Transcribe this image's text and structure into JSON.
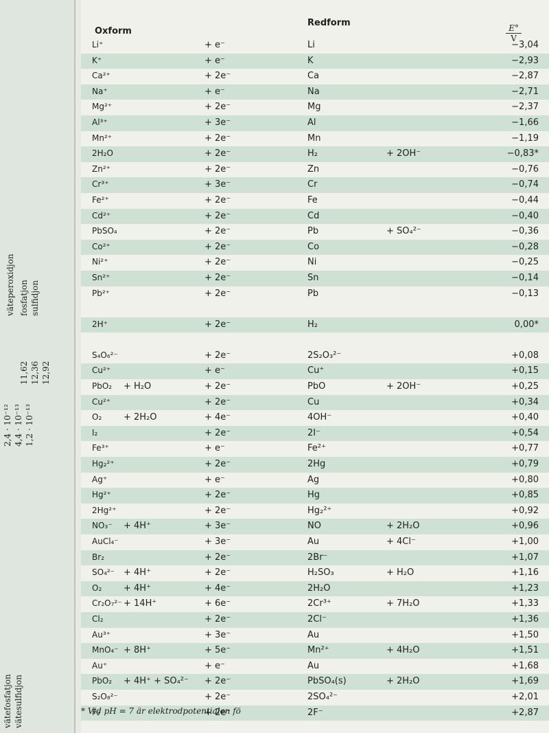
{
  "sidebar": [
    "vätefosfatjon",
    "vätesulfidjon",
    "väteperoxidjon",
    "fosfatjon",
    "sulfidjon",
    "11,62",
    "12,36",
    "12,92",
    "2,4 · 10⁻¹²",
    "4,4 · 10⁻¹³",
    "1,2 · 10⁻¹³"
  ],
  "header": {
    "oxform": "Oxform",
    "redform": "Redform",
    "e_symbol": "E°",
    "e_unit": "V"
  },
  "table": {
    "groups": [
      {
        "rows": [
          {
            "ox": "Li⁺",
            "e": "+ e⁻",
            "red": "Li",
            "E": "−3,04"
          },
          {
            "ox": "K⁺",
            "e": "+ e⁻",
            "red": "K",
            "E": "−2,93"
          },
          {
            "ox": "Ca²⁺",
            "e": "+ 2e⁻",
            "red": "Ca",
            "E": "−2,87"
          },
          {
            "ox": "Na⁺",
            "e": "+ e⁻",
            "red": "Na",
            "E": "−2,71"
          },
          {
            "ox": "Mg²⁺",
            "e": "+ 2e⁻",
            "red": "Mg",
            "E": "−2,37"
          },
          {
            "ox": "Al³⁺",
            "e": "+ 3e⁻",
            "red": "Al",
            "E": "−1,66"
          },
          {
            "ox": "Mn²⁺",
            "e": "+ 2e⁻",
            "red": "Mn",
            "E": "−1,19"
          },
          {
            "ox": "2H₂O",
            "e": "+ 2e⁻",
            "red": "H₂",
            "red_extra": "+ 2OH⁻",
            "E": "−0,83*"
          },
          {
            "ox": "Zn²⁺",
            "e": "+ 2e⁻",
            "red": "Zn",
            "E": "−0,76"
          },
          {
            "ox": "Cr³⁺",
            "e": "+ 3e⁻",
            "red": "Cr",
            "E": "−0,74"
          },
          {
            "ox": "Fe²⁺",
            "e": "+ 2e⁻",
            "red": "Fe",
            "E": "−0,44"
          },
          {
            "ox": "Cd²⁺",
            "e": "+ 2e⁻",
            "red": "Cd",
            "E": "−0,40"
          },
          {
            "ox": "PbSO₄",
            "e": "+ 2e⁻",
            "red": "Pb",
            "red_extra": "+ SO₄²⁻",
            "E": "−0,36"
          },
          {
            "ox": "Co²⁺",
            "e": "+ 2e⁻",
            "red": "Co",
            "E": "−0,28"
          },
          {
            "ox": "Ni²⁺",
            "e": "+ 2e⁻",
            "red": "Ni",
            "E": "−0,25"
          },
          {
            "ox": "Sn²⁺",
            "e": "+ 2e⁻",
            "red": "Sn",
            "E": "−0,14"
          },
          {
            "ox": "Pb²⁺",
            "e": "+ 2e⁻",
            "red": "Pb",
            "E": "−0,13"
          }
        ]
      },
      {
        "rows": [
          {
            "ox": "2H⁺",
            "e": "+ 2e⁻",
            "red": "H₂",
            "E": "0,00*"
          }
        ]
      },
      {
        "rows": [
          {
            "ox": "S₄O₆²⁻",
            "e": "+ 2e⁻",
            "red": "2S₂O₃²⁻",
            "E": "+0,08"
          },
          {
            "ox": "Cu²⁺",
            "e": "+ e⁻",
            "red": "Cu⁺",
            "E": "+0,15"
          },
          {
            "ox": "PbO₂",
            "ox_extra": "+ H₂O",
            "e": "+ 2e⁻",
            "red": "PbO",
            "red_extra": "+ 2OH⁻",
            "E": "+0,25"
          },
          {
            "ox": "Cu²⁺",
            "e": "+ 2e⁻",
            "red": "Cu",
            "E": "+0,34"
          },
          {
            "ox": "O₂",
            "ox_extra": "+ 2H₂O",
            "e": "+ 4e⁻",
            "red": "4OH⁻",
            "E": "+0,40"
          },
          {
            "ox": "I₂",
            "e": "+ 2e⁻",
            "red": "2I⁻",
            "E": "+0,54"
          },
          {
            "ox": "Fe³⁺",
            "e": "+ e⁻",
            "red": "Fe²⁺",
            "E": "+0,77"
          },
          {
            "ox": "Hg₂²⁺",
            "e": "+ 2e⁻",
            "red": "2Hg",
            "E": "+0,79"
          },
          {
            "ox": "Ag⁺",
            "e": "+ e⁻",
            "red": "Ag",
            "E": "+0,80"
          },
          {
            "ox": "Hg²⁺",
            "e": "+ 2e⁻",
            "red": "Hg",
            "E": "+0,85"
          },
          {
            "ox": "2Hg²⁺",
            "e": "+ 2e⁻",
            "red": "Hg₂²⁺",
            "E": "+0,92"
          },
          {
            "ox": "NO₃⁻",
            "ox_extra": "+ 4H⁺",
            "e": "+ 3e⁻",
            "red": "NO",
            "red_extra": "+ 2H₂O",
            "E": "+0,96"
          },
          {
            "ox": "AuCl₄⁻",
            "e": "+ 3e⁻",
            "red": "Au",
            "red_extra": "+ 4Cl⁻",
            "E": "+1,00"
          },
          {
            "ox": "Br₂",
            "e": "+ 2e⁻",
            "red": "2Br⁻",
            "E": "+1,07"
          },
          {
            "ox": "SO₄²⁻",
            "ox_extra": "+ 4H⁺",
            "e": "+ 2e⁻",
            "red": "H₂SO₃",
            "red_extra": "+ H₂O",
            "E": "+1,16"
          },
          {
            "ox": "O₂",
            "ox_extra": "+ 4H⁺",
            "e": "+ 4e⁻",
            "red": "2H₂O",
            "E": "+1,23"
          },
          {
            "ox": "Cr₂O₇²⁻",
            "ox_extra": "+ 14H⁺",
            "e": "+ 6e⁻",
            "red": "2Cr³⁺",
            "red_extra": "+ 7H₂O",
            "E": "+1,33"
          },
          {
            "ox": "Cl₂",
            "e": "+ 2e⁻",
            "red": "2Cl⁻",
            "E": "+1,36"
          },
          {
            "ox": "Au³⁺",
            "e": "+ 3e⁻",
            "red": "Au",
            "E": "+1,50"
          },
          {
            "ox": "MnO₄⁻",
            "ox_extra": "+ 8H⁺",
            "e": "+ 5e⁻",
            "red": "Mn²⁺",
            "red_extra": "+ 4H₂O",
            "E": "+1,51"
          },
          {
            "ox": "Au⁺",
            "e": "+ e⁻",
            "red": "Au",
            "E": "+1,68"
          },
          {
            "ox": "PbO₂",
            "ox_extra": "+ 4H⁺ + SO₄²⁻",
            "e": "+ 2e⁻",
            "red": "PbSO₄(s)",
            "red_extra": "+ 2H₂O",
            "E": "+1,69"
          },
          {
            "ox": "S₂O₈²⁻",
            "e": "+ 2e⁻",
            "red": "2SO₄²⁻",
            "E": "+2,01"
          },
          {
            "ox": "F₂",
            "e": "+ 2e⁻",
            "red": "2F⁻",
            "E": "+2,87"
          }
        ]
      }
    ]
  },
  "footnote": "* Vid pH = 7 är elektrodpotentialen fö"
}
